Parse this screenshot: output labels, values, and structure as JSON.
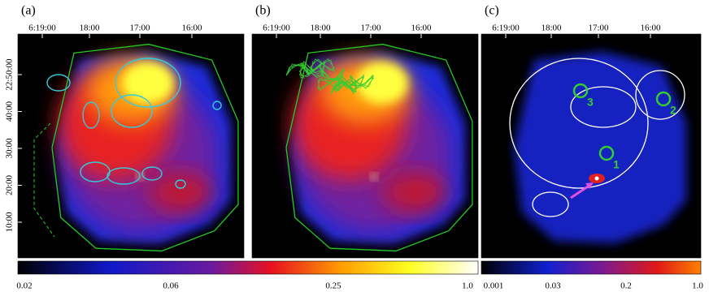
{
  "panels": [
    {
      "label": "(a)",
      "ra_ticks": [
        "6:19:00",
        "18:00",
        "17:00",
        "16:00"
      ],
      "dec_ticks": [
        "22:50:00",
        "40:00",
        "30:00",
        "20:00",
        "10:00"
      ]
    },
    {
      "label": "(b)",
      "ra_ticks": [
        "6:19:00",
        "18:00",
        "17:00",
        "16:00"
      ]
    },
    {
      "label": "(c)",
      "ra_ticks": [
        "6:19:00",
        "18:00",
        "17:00",
        "16:00"
      ],
      "regions": [
        "1",
        "2",
        "3"
      ]
    }
  ],
  "colorbars": [
    {
      "ticks": [
        "0.02",
        "0.06",
        "0.25",
        "1.0"
      ]
    },
    {
      "ticks": [
        "0.001",
        "0.03",
        "0.2",
        "1.0"
      ]
    }
  ]
}
